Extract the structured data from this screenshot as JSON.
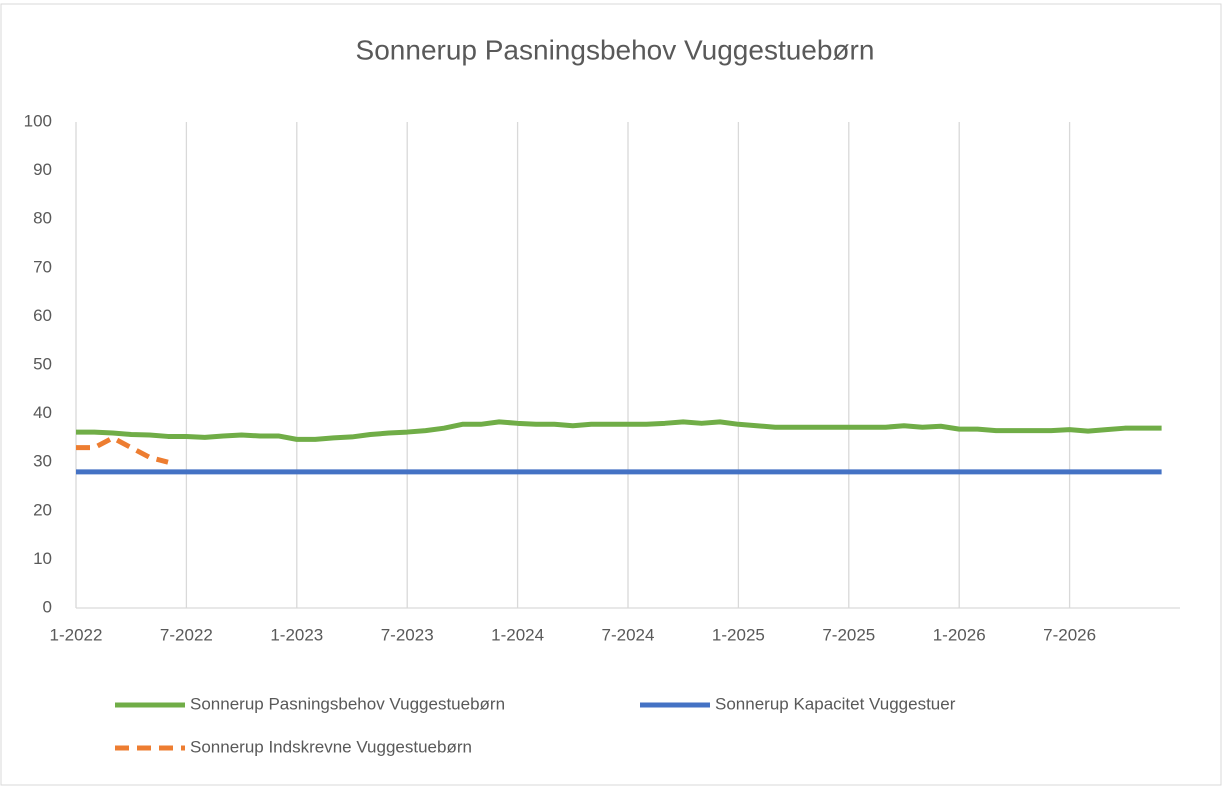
{
  "chart_data": {
    "type": "line",
    "title": "Sonnerup Pasningsbehov Vuggestuebørn",
    "categories": [
      "1-2022",
      null,
      null,
      null,
      null,
      null,
      "7-2022",
      null,
      null,
      null,
      null,
      null,
      "1-2023",
      null,
      null,
      null,
      null,
      null,
      "7-2023",
      null,
      null,
      null,
      null,
      null,
      "1-2024",
      null,
      null,
      null,
      null,
      null,
      "7-2024",
      null,
      null,
      null,
      null,
      null,
      "1-2025",
      null,
      null,
      null,
      null,
      null,
      "7-2025",
      null,
      null,
      null,
      null,
      null,
      "1-2026",
      null,
      null,
      null,
      null,
      null,
      "7-2026",
      null,
      null,
      null,
      null,
      null
    ],
    "series": [
      {
        "name": "Sonnerup Pasningsbehov Vuggestuebørn",
        "color": "#70ad47",
        "dash": false,
        "values": [
          36.2,
          36.2,
          36,
          35.7,
          35.6,
          35.3,
          35.3,
          35.1,
          35.4,
          35.6,
          35.4,
          35.4,
          34.7,
          34.7,
          35,
          35.2,
          35.7,
          36,
          36.2,
          36.5,
          37,
          37.8,
          37.8,
          38.3,
          38,
          37.8,
          37.8,
          37.5,
          37.8,
          37.8,
          37.8,
          37.8,
          38,
          38.3,
          38,
          38.3,
          37.8,
          37.5,
          37.2,
          37.2,
          37.2,
          37.2,
          37.2,
          37.2,
          37.2,
          37.5,
          37.2,
          37.4,
          36.8,
          36.8,
          36.5,
          36.5,
          36.5,
          36.5,
          36.7,
          36.4,
          36.7,
          37,
          37,
          37
        ]
      },
      {
        "name": "Sonnerup Kapacitet Vuggestuer",
        "color": "#4472c4",
        "dash": false,
        "values": [
          28,
          28,
          28,
          28,
          28,
          28,
          28,
          28,
          28,
          28,
          28,
          28,
          28,
          28,
          28,
          28,
          28,
          28,
          28,
          28,
          28,
          28,
          28,
          28,
          28,
          28,
          28,
          28,
          28,
          28,
          28,
          28,
          28,
          28,
          28,
          28,
          28,
          28,
          28,
          28,
          28,
          28,
          28,
          28,
          28,
          28,
          28,
          28,
          28,
          28,
          28,
          28,
          28,
          28,
          28,
          28,
          28,
          28,
          28,
          28
        ]
      },
      {
        "name": "Sonnerup Indskrevne Vuggestuebørn",
        "color": "#ed7d31",
        "dash": true,
        "values": [
          33,
          33,
          35,
          33,
          31,
          30,
          null,
          null,
          null,
          null,
          null,
          null,
          null,
          null,
          null,
          null,
          null,
          null,
          null,
          null,
          null,
          null,
          null,
          null,
          null,
          null,
          null,
          null,
          null,
          null,
          null,
          null,
          null,
          null,
          null,
          null,
          null,
          null,
          null,
          null,
          null,
          null,
          null,
          null,
          null,
          null,
          null,
          null,
          null,
          null,
          null,
          null,
          null,
          null,
          null,
          null,
          null,
          null,
          null,
          null
        ]
      }
    ],
    "ylim": [
      0,
      100
    ],
    "yticks": [
      0,
      10,
      20,
      30,
      40,
      50,
      60,
      70,
      80,
      90,
      100
    ],
    "xgrid": true,
    "legend": "bottom"
  }
}
